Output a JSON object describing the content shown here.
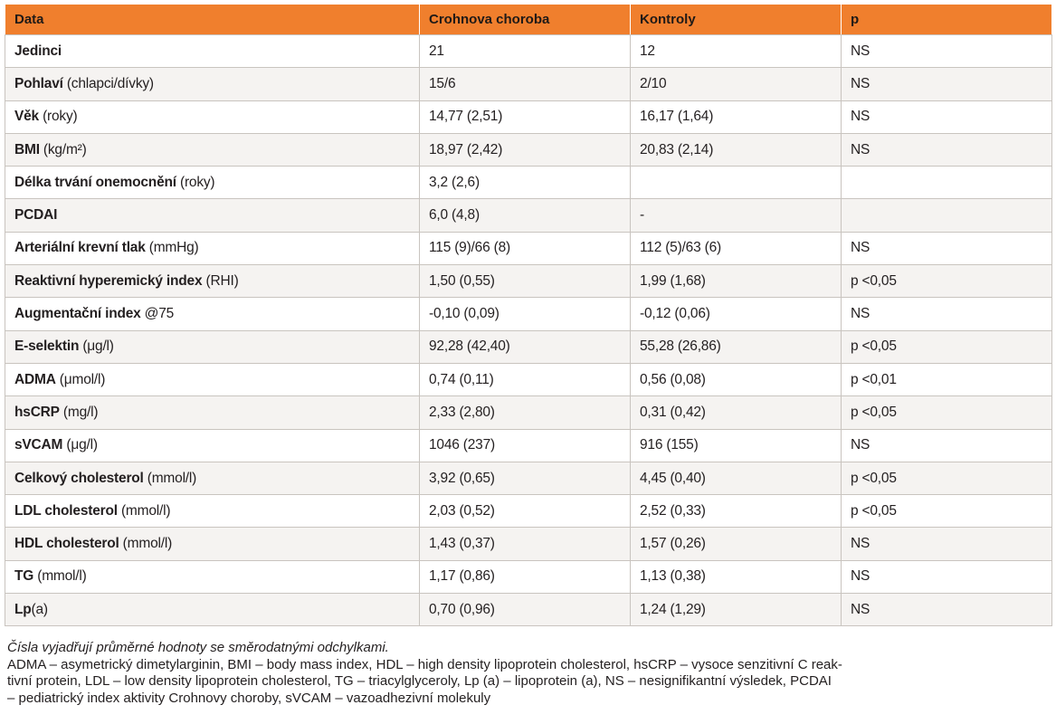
{
  "table": {
    "headers": [
      "Data",
      "Crohnova choroba",
      "Kontroly",
      "p"
    ],
    "rows": [
      {
        "label": "Jedinci",
        "unit": "",
        "crohn": "21",
        "control": "12",
        "p": "NS"
      },
      {
        "label": "Pohlaví",
        "unit": " (chlapci/dívky)",
        "crohn": "15/6",
        "control": "2/10",
        "p": "NS"
      },
      {
        "label": "Věk",
        "unit": " (roky)",
        "crohn": "14,77 (2,51)",
        "control": "16,17 (1,64)",
        "p": "NS"
      },
      {
        "label": "BMI",
        "unit": " (kg/m²)",
        "crohn": "18,97 (2,42)",
        "control": "20,83 (2,14)",
        "p": "NS"
      },
      {
        "label": "Délka trvání onemocnění",
        "unit": " (roky)",
        "crohn": "3,2 (2,6)",
        "control": "",
        "p": ""
      },
      {
        "label": "PCDAI",
        "unit": "",
        "crohn": "6,0 (4,8)",
        "control": "-",
        "p": ""
      },
      {
        "label": "Arteriální krevní tlak",
        "unit": " (mmHg)",
        "crohn": "115 (9)/66 (8)",
        "control": "112 (5)/63 (6)",
        "p": "NS"
      },
      {
        "label": "Reaktivní hyperemický index",
        "unit": " (RHI)",
        "crohn": "1,50 (0,55)",
        "control": "1,99 (1,68)",
        "p": "p <0,05"
      },
      {
        "label": "Augmentační index",
        "unit": " @75",
        "crohn": "-0,10 (0,09)",
        "control": "-0,12 (0,06)",
        "p": "NS"
      },
      {
        "label": "E-selektin",
        "unit": " (μg/l)",
        "crohn": "92,28 (42,40)",
        "control": "55,28 (26,86)",
        "p": "p <0,05"
      },
      {
        "label": "ADMA",
        "unit": " (μmol/l)",
        "crohn": "0,74 (0,11)",
        "control": "0,56 (0,08)",
        "p": "p <0,01"
      },
      {
        "label": "hsCRP",
        "unit": " (mg/l)",
        "crohn": "2,33 (2,80)",
        "control": "0,31 (0,42)",
        "p": "p <0,05"
      },
      {
        "label": "sVCAM",
        "unit": " (μg/l)",
        "crohn": "1046 (237)",
        "control": "916 (155)",
        "p": "NS"
      },
      {
        "label": "Celkový cholesterol",
        "unit": " (mmol/l)",
        "crohn": "3,92 (0,65)",
        "control": "4,45 (0,40)",
        "p": "p <0,05"
      },
      {
        "label": "LDL cholesterol",
        "unit": " (mmol/l)",
        "crohn": "2,03 (0,52)",
        "control": "2,52 (0,33)",
        "p": "p <0,05"
      },
      {
        "label": "HDL cholesterol",
        "unit": " (mmol/l)",
        "crohn": "1,43 (0,37)",
        "control": "1,57 (0,26)",
        "p": "NS"
      },
      {
        "label": "TG",
        "unit": " (mmol/l)",
        "crohn": "1,17 (0,86)",
        "control": "1,13 (0,38)",
        "p": "NS"
      },
      {
        "label": "Lp",
        "unit": "(a)",
        "crohn": "0,70 (0,96)",
        "control": "1,24 (1,29)",
        "p": "NS"
      }
    ]
  },
  "notes": {
    "line1": "Čísla vyjadřují průměrné hodnoty se směrodatnými odchylkami.",
    "line2": "ADMA – asymetrický dimetylarginin, BMI – body mass index, HDL – high density lipoprotein cholesterol, hsCRP – vysoce senzitivní C reak-",
    "line3": "tivní protein, LDL – low density lipoprotein cholesterol, TG – triacylglyceroly, Lp (a) – lipoprotein (a), NS – nesignifikantní výsledek, PCDAI",
    "line4": "– pediatrický index aktivity Crohnovy choroby, sVCAM – vazoadhezivní molekuly"
  },
  "colors": {
    "header_bg": "#f07f2d",
    "row_alt_bg": "#f5f3f1",
    "border": "#c9c4bf"
  }
}
